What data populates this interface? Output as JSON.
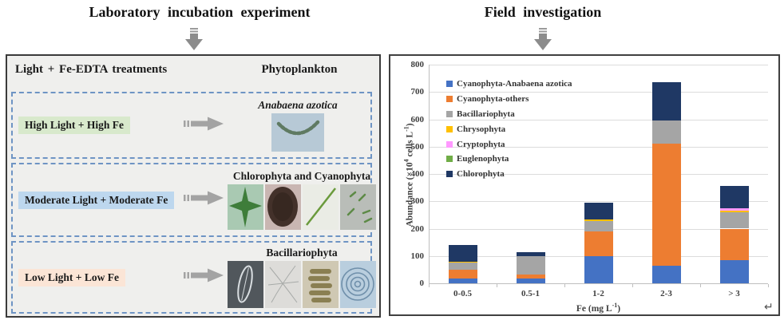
{
  "left_panel": {
    "title": "Laboratory incubation experiment",
    "header_left": "Light + Fe-EDTA treatments",
    "header_right": "Phytoplankton",
    "rows": [
      {
        "treatment": "High Light + High Fe",
        "treatment_bg": "#d8e9cc",
        "result": "Anabaena azotica",
        "result_italic": true,
        "images": [
          {
            "name": "anabaena-filament-micrograph",
            "bg": "#b7c9d6",
            "shape": "chain",
            "accent": "#5f7a62",
            "w": 66,
            "h": 48
          }
        ]
      },
      {
        "treatment": "Moderate Light + Moderate Fe",
        "treatment_bg": "#bdd7ee",
        "result": "Chlorophyta and Cyanophyta",
        "result_italic": false,
        "images": [
          {
            "name": "desmid-cell-micrograph",
            "bg": "#a9c9b2",
            "shape": "star",
            "accent": "#3e7d3a",
            "w": 45,
            "h": 57
          },
          {
            "name": "dark-colony-micrograph",
            "bg": "#c9b6b2",
            "shape": "colony",
            "accent": "#43312a",
            "w": 45,
            "h": 57
          },
          {
            "name": "needle-cell-micrograph",
            "bg": "#eaece5",
            "shape": "needle",
            "accent": "#6a9a3c",
            "w": 45,
            "h": 57
          },
          {
            "name": "rod-cells-micrograph",
            "bg": "#b9bdb8",
            "shape": "rods",
            "accent": "#5d8a46",
            "w": 45,
            "h": 57
          }
        ]
      },
      {
        "treatment": "Low Light + Low Fe",
        "treatment_bg": "#fbe5d6",
        "result": "Bacillariophyta",
        "result_italic": false,
        "images": [
          {
            "name": "diatom-lens-micrograph",
            "bg": "#51575c",
            "shape": "lens",
            "accent": "#d9dee1",
            "w": 45,
            "h": 59
          },
          {
            "name": "diatom-threads-micrograph",
            "bg": "#dddcd9",
            "shape": "threads",
            "accent": "#a7aaa8",
            "w": 45,
            "h": 59
          },
          {
            "name": "diatom-stack-micrograph",
            "bg": "#cfc8b3",
            "shape": "stack",
            "accent": "#8a7f52",
            "w": 45,
            "h": 59
          },
          {
            "name": "diatom-disc-micrograph",
            "bg": "#b9cede",
            "shape": "rings",
            "accent": "#6f8faa",
            "w": 45,
            "h": 59
          }
        ]
      }
    ]
  },
  "right_panel": {
    "title": "Field investigation"
  },
  "chart_data": {
    "type": "bar",
    "stacked": true,
    "title": "",
    "categories": [
      "0-0.5",
      "0.5-1",
      "1-2",
      "2-3",
      "> 3"
    ],
    "series": [
      {
        "name": "Cyanophyta-Anabaena azotica",
        "color": "#4472C4",
        "values": [
          18,
          18,
          100,
          65,
          85
        ]
      },
      {
        "name": "Cyanophyta-others",
        "color": "#ED7D31",
        "values": [
          32,
          13,
          90,
          445,
          115
        ]
      },
      {
        "name": "Bacillariophyta",
        "color": "#A5A5A5",
        "values": [
          26,
          69,
          38,
          85,
          60
        ]
      },
      {
        "name": "Chrysophyta",
        "color": "#FFC000",
        "values": [
          4,
          0,
          5,
          0,
          5
        ]
      },
      {
        "name": "Cryptophyta",
        "color": "#FF99FF",
        "values": [
          0,
          0,
          0,
          0,
          10
        ]
      },
      {
        "name": "Euglenophyta",
        "color": "#70AD47",
        "values": [
          0,
          0,
          0,
          0,
          0
        ]
      },
      {
        "name": "Chlorophyta",
        "color": "#1F3864",
        "values": [
          60,
          15,
          62,
          140,
          80
        ]
      }
    ],
    "totals": [
      140,
      115,
      295,
      735,
      355
    ],
    "ylim": [
      0,
      800
    ],
    "ytick_step": 100,
    "yticks": [
      0,
      100,
      200,
      300,
      400,
      500,
      600,
      700,
      800
    ],
    "xlabel_parts": [
      "Fe (mg L",
      {
        "sup": "-1"
      },
      ")"
    ],
    "ylabel_parts": [
      "Abundance (×10",
      {
        "sup": "4"
      },
      " cells L",
      {
        "sup": "-1"
      },
      ")"
    ],
    "grid": true,
    "legend_position": "upper-left-inside"
  },
  "decoration": {
    "return_mark": "↵",
    "arrow_color": "#9b9b9b",
    "dashed_border_color": "#6e94c4"
  }
}
